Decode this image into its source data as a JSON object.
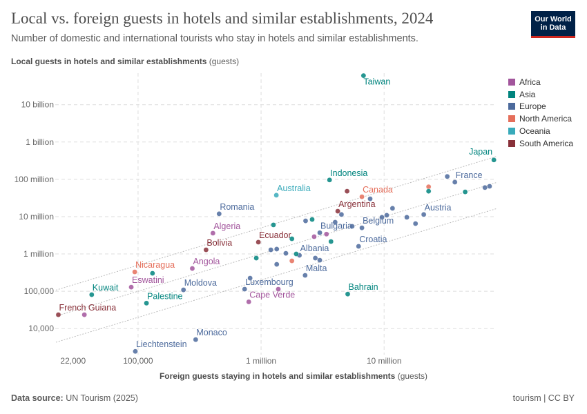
{
  "header": {
    "title": "Local vs. foreign guests in hotels and similar establishments, 2024",
    "subtitle": "Number of domestic and international tourists who stay in hotels and similar establishments.",
    "logo_line1": "Our World",
    "logo_line2": "in Data"
  },
  "footer": {
    "source_label": "Data source:",
    "source": "UN Tourism (2025)",
    "right": "tourism | CC BY"
  },
  "chart_data": {
    "type": "scatter",
    "title": "Local vs. foreign guests in hotels and similar establishments, 2024",
    "xlabel": "Foreign guests staying in hotels and similar establishments",
    "xunit": "(guests)",
    "ylabel": "Local guests in hotels and similar establishments",
    "yunit": "(guests)",
    "xscale": "log",
    "yscale": "log",
    "xlim": [
      21500,
      82000000
    ],
    "ylim": [
      2000,
      70000000000
    ],
    "grid": true,
    "legend_position": "right",
    "x_ticks": [
      {
        "v": 22000,
        "label": "22,000"
      },
      {
        "v": 100000,
        "label": "100,000"
      },
      {
        "v": 1000000,
        "label": "1 million"
      },
      {
        "v": 10000000,
        "label": "10 million"
      }
    ],
    "y_ticks": [
      {
        "v": 10000,
        "label": "10,000"
      },
      {
        "v": 100000,
        "label": "100,000"
      },
      {
        "v": 1000000,
        "label": "1 million"
      },
      {
        "v": 10000000,
        "label": "10 million"
      },
      {
        "v": 100000000,
        "label": "100 million"
      },
      {
        "v": 1000000000,
        "label": "1 billion"
      },
      {
        "v": 10000000000,
        "label": "10 billion"
      }
    ],
    "reference_lines_ratio": [
      5,
      1,
      0.2
    ],
    "regions": [
      {
        "name": "Africa",
        "color": "#a2559c"
      },
      {
        "name": "Asia",
        "color": "#00847e"
      },
      {
        "name": "Europe",
        "color": "#4c6a9c"
      },
      {
        "name": "North America",
        "color": "#e56e5a"
      },
      {
        "name": "Oceania",
        "color": "#38aaba"
      },
      {
        "name": "South America",
        "color": "#883039"
      }
    ],
    "points": [
      {
        "label": "Taiwan",
        "region": "Asia",
        "x": 6800000,
        "y": 60000000000
      },
      {
        "label": "Japan",
        "region": "Asia",
        "x": 78000000,
        "y": 330000000
      },
      {
        "label": "Indonesia",
        "region": "Asia",
        "x": 3600000,
        "y": 96000000
      },
      {
        "label": "Australia",
        "region": "Oceania",
        "x": 1330000,
        "y": 37500000
      },
      {
        "label": "Canada",
        "region": "North America",
        "x": 6600000,
        "y": 34000000
      },
      {
        "label": "France",
        "region": "Europe",
        "x": 37600000,
        "y": 84000000
      },
      {
        "label": "Romania",
        "region": "Europe",
        "x": 456000,
        "y": 11900000
      },
      {
        "label": "Argentina",
        "region": "South America",
        "x": 4200000,
        "y": 14000000
      },
      {
        "label": "Austria",
        "region": "Europe",
        "x": 21000000,
        "y": 11400000
      },
      {
        "label": "Belgium",
        "region": "Europe",
        "x": 6600000,
        "y": 5000000
      },
      {
        "label": "Algeria",
        "region": "Africa",
        "x": 406000,
        "y": 3600000
      },
      {
        "label": "Bulgaria",
        "region": "Europe",
        "x": 3000000,
        "y": 3700000
      },
      {
        "label": "Ecuador",
        "region": "South America",
        "x": 950000,
        "y": 2070000
      },
      {
        "label": "Croatia",
        "region": "Europe",
        "x": 6200000,
        "y": 1600000
      },
      {
        "label": "Bolivia",
        "region": "South America",
        "x": 357000,
        "y": 1290000
      },
      {
        "label": "Albania",
        "region": "Europe",
        "x": 2050000,
        "y": 920000
      },
      {
        "label": "Angola",
        "region": "Africa",
        "x": 276000,
        "y": 408000
      },
      {
        "label": "Nicaragua",
        "region": "North America",
        "x": 94000,
        "y": 330000
      },
      {
        "label": "Malta",
        "region": "Europe",
        "x": 2280000,
        "y": 267000
      },
      {
        "label": "Eswatini",
        "region": "Africa",
        "x": 88000,
        "y": 129000
      },
      {
        "label": "Moldova",
        "region": "Europe",
        "x": 234000,
        "y": 109000
      },
      {
        "label": "Luxembourg",
        "region": "Europe",
        "x": 735000,
        "y": 114000
      },
      {
        "label": "Kuwait",
        "region": "Asia",
        "x": 42000,
        "y": 81000
      },
      {
        "label": "Bahrain",
        "region": "Asia",
        "x": 5060000,
        "y": 84000
      },
      {
        "label": "Cape Verde",
        "region": "Africa",
        "x": 794000,
        "y": 52000
      },
      {
        "label": "Palestine",
        "region": "Asia",
        "x": 117000,
        "y": 48000
      },
      {
        "label": "French Guiana",
        "region": "South America",
        "x": 22500,
        "y": 23500
      },
      {
        "label": "Monaco",
        "region": "Europe",
        "x": 294000,
        "y": 5060
      },
      {
        "label": "Liechtenstein",
        "region": "Europe",
        "x": 95000,
        "y": 2450
      },
      {
        "region": "South America",
        "x": 5000000,
        "y": 48000000
      },
      {
        "region": "Europe",
        "x": 7700000,
        "y": 30000000
      },
      {
        "region": "North America",
        "x": 23000000,
        "y": 63000000
      },
      {
        "region": "Asia",
        "x": 23000000,
        "y": 48000000
      },
      {
        "region": "Asia",
        "x": 45600000,
        "y": 46000000
      },
      {
        "region": "Europe",
        "x": 32600000,
        "y": 119000000
      },
      {
        "region": "Europe",
        "x": 66000000,
        "y": 60000000
      },
      {
        "region": "Europe",
        "x": 72000000,
        "y": 65000000
      },
      {
        "region": "Europe",
        "x": 11700000,
        "y": 16700000
      },
      {
        "region": "Europe",
        "x": 4500000,
        "y": 11400000
      },
      {
        "region": "Europe",
        "x": 10500000,
        "y": 10900000
      },
      {
        "region": "Europe",
        "x": 9600000,
        "y": 9600000
      },
      {
        "region": "Europe",
        "x": 15300000,
        "y": 9600000
      },
      {
        "region": "Europe",
        "x": 18000000,
        "y": 6500000
      },
      {
        "region": "Europe",
        "x": 2300000,
        "y": 7700000
      },
      {
        "region": "Asia",
        "x": 2600000,
        "y": 8400000
      },
      {
        "region": "Europe",
        "x": 4000000,
        "y": 7100000
      },
      {
        "region": "Europe",
        "x": 5500000,
        "y": 5500000
      },
      {
        "region": "Asia",
        "x": 1260000,
        "y": 6000000
      },
      {
        "region": "Asia",
        "x": 1780000,
        "y": 2550000
      },
      {
        "region": "Africa",
        "x": 2700000,
        "y": 2900000
      },
      {
        "region": "Africa",
        "x": 3400000,
        "y": 3400000
      },
      {
        "region": "Asia",
        "x": 3700000,
        "y": 2150000
      },
      {
        "region": "Europe",
        "x": 1200000,
        "y": 1290000
      },
      {
        "region": "Europe",
        "x": 1340000,
        "y": 1350000
      },
      {
        "region": "Europe",
        "x": 1590000,
        "y": 1040000
      },
      {
        "region": "Asia",
        "x": 1930000,
        "y": 1000000
      },
      {
        "region": "Europe",
        "x": 2760000,
        "y": 775000
      },
      {
        "region": "Europe",
        "x": 3000000,
        "y": 680000
      },
      {
        "region": "Asia",
        "x": 914000,
        "y": 775000
      },
      {
        "region": "Europe",
        "x": 1340000,
        "y": 527000
      },
      {
        "region": "North America",
        "x": 1780000,
        "y": 653000
      },
      {
        "region": "Europe",
        "x": 814000,
        "y": 225000
      },
      {
        "region": "Africa",
        "x": 1380000,
        "y": 114000
      },
      {
        "region": "Asia",
        "x": 131000,
        "y": 303000
      },
      {
        "region": "Africa",
        "x": 36600,
        "y": 23500
      }
    ]
  }
}
